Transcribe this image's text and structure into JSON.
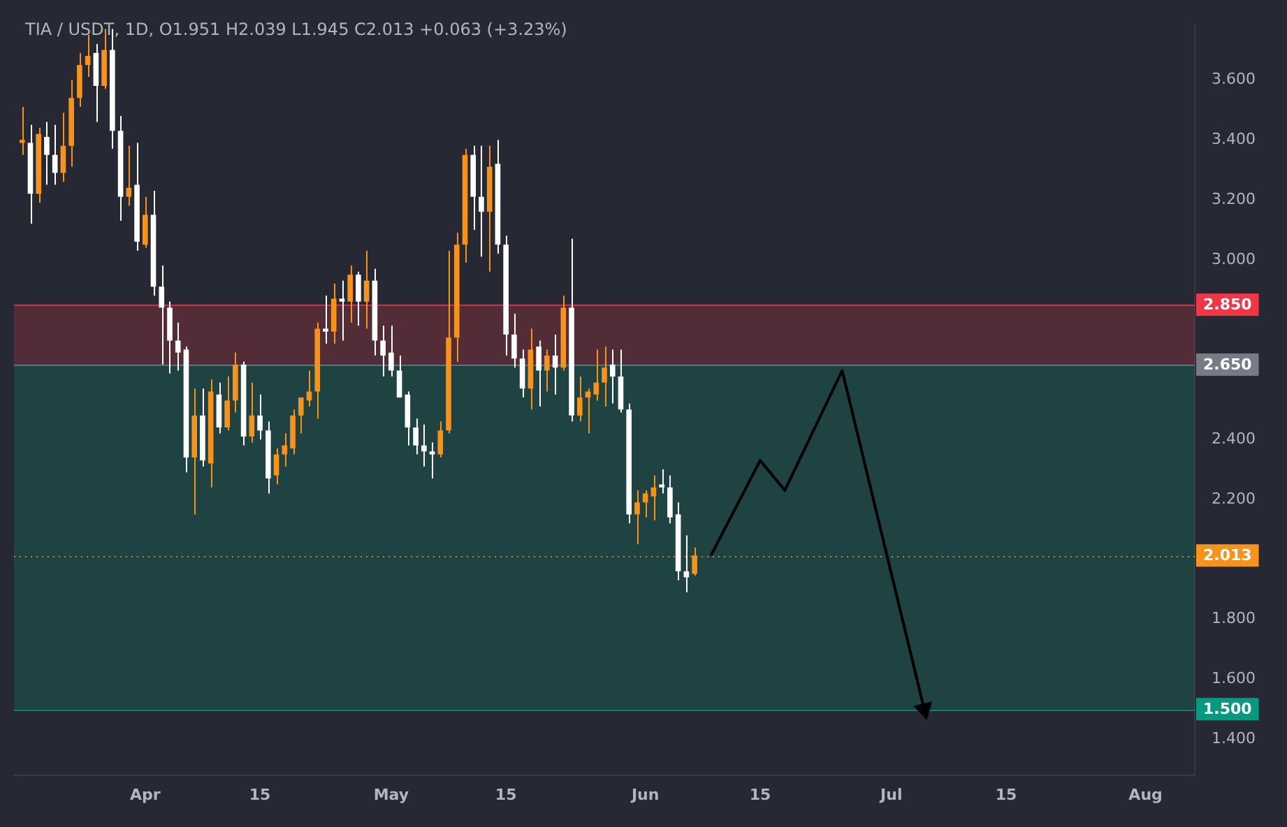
{
  "chart_data": {
    "type": "candlestick",
    "title": "TIA / USDT, 1D, O1.951 H2.039 L1.945 C2.013 +0.063 (+3.23%)",
    "x": [
      "--03-17",
      "--03-18",
      "--03-19",
      "--03-20",
      "--03-21",
      "--03-22",
      "--03-23",
      "--03-24",
      "--03-25",
      "--03-26",
      "--03-27",
      "--03-28",
      "--03-29",
      "--03-30",
      "--03-31",
      "--04-01",
      "--04-02",
      "--04-03",
      "--04-04",
      "--04-05",
      "--04-06",
      "--04-07",
      "--04-08",
      "--04-09",
      "--04-10",
      "--04-11",
      "--04-12",
      "--04-13",
      "--04-14",
      "--04-15",
      "--04-16",
      "--04-17",
      "--04-18",
      "--04-19",
      "--04-20",
      "--04-21",
      "--04-22",
      "--04-23",
      "--04-24",
      "--04-25",
      "--04-26",
      "--04-27",
      "--04-28",
      "--04-29",
      "--04-30",
      "--05-01",
      "--05-02",
      "--05-03",
      "--05-04",
      "--05-05",
      "--05-06",
      "--05-07",
      "--05-08",
      "--05-09",
      "--05-10",
      "--05-11",
      "--05-12",
      "--05-13",
      "--05-14",
      "--05-15",
      "--05-16",
      "--05-17",
      "--05-18",
      "--05-19",
      "--05-20",
      "--05-21",
      "--05-22",
      "--05-23",
      "--05-24",
      "--05-25",
      "--05-26",
      "--05-27",
      "--05-28",
      "--05-29",
      "--05-30",
      "--05-31",
      "--06-01",
      "--06-02",
      "--06-03",
      "--06-04",
      "--06-05",
      "--06-06",
      "--06-07"
    ],
    "ohlc": [
      [
        3.39,
        3.51,
        3.35,
        3.4
      ],
      [
        3.39,
        3.45,
        3.12,
        3.22
      ],
      [
        3.22,
        3.44,
        3.19,
        3.42
      ],
      [
        3.41,
        3.46,
        3.25,
        3.35
      ],
      [
        3.35,
        3.45,
        3.25,
        3.29
      ],
      [
        3.29,
        3.49,
        3.26,
        3.38
      ],
      [
        3.38,
        3.6,
        3.31,
        3.54
      ],
      [
        3.54,
        3.69,
        3.51,
        3.65
      ],
      [
        3.65,
        3.75,
        3.61,
        3.68
      ],
      [
        3.69,
        3.72,
        3.46,
        3.58
      ],
      [
        3.58,
        3.77,
        3.57,
        3.7
      ],
      [
        3.7,
        3.77,
        3.37,
        3.43
      ],
      [
        3.43,
        3.48,
        3.13,
        3.21
      ],
      [
        3.21,
        3.38,
        3.18,
        3.24
      ],
      [
        3.25,
        3.39,
        3.03,
        3.06
      ],
      [
        3.05,
        3.21,
        3.04,
        3.15
      ],
      [
        3.15,
        3.23,
        2.88,
        2.91
      ],
      [
        2.91,
        2.98,
        2.65,
        2.84
      ],
      [
        2.84,
        2.86,
        2.62,
        2.73
      ],
      [
        2.73,
        2.79,
        2.63,
        2.69
      ],
      [
        2.7,
        2.71,
        2.29,
        2.34
      ],
      [
        2.34,
        2.57,
        2.15,
        2.48
      ],
      [
        2.48,
        2.57,
        2.31,
        2.33
      ],
      [
        2.32,
        2.6,
        2.24,
        2.56
      ],
      [
        2.55,
        2.59,
        2.42,
        2.44
      ],
      [
        2.44,
        2.61,
        2.43,
        2.53
      ],
      [
        2.53,
        2.69,
        2.49,
        2.65
      ],
      [
        2.65,
        2.66,
        2.38,
        2.41
      ],
      [
        2.41,
        2.59,
        2.39,
        2.48
      ],
      [
        2.48,
        2.55,
        2.4,
        2.43
      ],
      [
        2.43,
        2.46,
        2.22,
        2.27
      ],
      [
        2.28,
        2.37,
        2.25,
        2.35
      ],
      [
        2.35,
        2.42,
        2.31,
        2.38
      ],
      [
        2.37,
        2.5,
        2.35,
        2.48
      ],
      [
        2.48,
        2.54,
        2.42,
        2.54
      ],
      [
        2.53,
        2.63,
        2.51,
        2.56
      ],
      [
        2.56,
        2.79,
        2.47,
        2.77
      ],
      [
        2.77,
        2.88,
        2.72,
        2.76
      ],
      [
        2.76,
        2.92,
        2.72,
        2.87
      ],
      [
        2.87,
        2.93,
        2.73,
        2.86
      ],
      [
        2.86,
        2.98,
        2.79,
        2.95
      ],
      [
        2.95,
        2.96,
        2.78,
        2.86
      ],
      [
        2.86,
        3.03,
        2.77,
        2.93
      ],
      [
        2.93,
        2.97,
        2.68,
        2.73
      ],
      [
        2.73,
        2.78,
        2.61,
        2.68
      ],
      [
        2.69,
        2.78,
        2.61,
        2.63
      ],
      [
        2.63,
        2.68,
        2.54,
        2.54
      ],
      [
        2.55,
        2.56,
        2.38,
        2.44
      ],
      [
        2.44,
        2.47,
        2.35,
        2.38
      ],
      [
        2.38,
        2.45,
        2.31,
        2.36
      ],
      [
        2.36,
        2.39,
        2.27,
        2.35
      ],
      [
        2.35,
        2.46,
        2.34,
        2.43
      ],
      [
        2.43,
        3.03,
        2.42,
        2.74
      ],
      [
        2.74,
        3.09,
        2.66,
        3.05
      ],
      [
        3.05,
        3.37,
        2.99,
        3.35
      ],
      [
        3.35,
        3.38,
        3.1,
        3.21
      ],
      [
        3.21,
        3.38,
        3.01,
        3.16
      ],
      [
        3.16,
        3.38,
        2.96,
        3.31
      ],
      [
        3.32,
        3.4,
        3.02,
        3.05
      ],
      [
        3.05,
        3.08,
        2.68,
        2.75
      ],
      [
        2.75,
        2.82,
        2.64,
        2.67
      ],
      [
        2.67,
        2.7,
        2.54,
        2.57
      ],
      [
        2.57,
        2.77,
        2.5,
        2.7
      ],
      [
        2.71,
        2.73,
        2.51,
        2.63
      ],
      [
        2.63,
        2.7,
        2.56,
        2.68
      ],
      [
        2.68,
        2.75,
        2.55,
        2.64
      ],
      [
        2.64,
        2.88,
        2.63,
        2.84
      ],
      [
        2.84,
        3.07,
        2.46,
        2.48
      ],
      [
        2.48,
        2.61,
        2.46,
        2.54
      ],
      [
        2.54,
        2.57,
        2.42,
        2.56
      ],
      [
        2.55,
        2.7,
        2.53,
        2.59
      ],
      [
        2.59,
        2.71,
        2.51,
        2.64
      ],
      [
        2.65,
        2.7,
        2.52,
        2.61
      ],
      [
        2.61,
        2.7,
        2.49,
        2.5
      ],
      [
        2.5,
        2.52,
        2.12,
        2.15
      ],
      [
        2.15,
        2.23,
        2.05,
        2.19
      ],
      [
        2.19,
        2.23,
        2.14,
        2.22
      ],
      [
        2.21,
        2.28,
        2.13,
        2.24
      ],
      [
        2.25,
        2.3,
        2.22,
        2.24
      ],
      [
        2.24,
        2.28,
        2.12,
        2.14
      ],
      [
        2.15,
        2.19,
        1.93,
        1.96
      ],
      [
        1.96,
        2.08,
        1.89,
        1.94
      ],
      [
        1.951,
        2.039,
        1.945,
        2.013
      ]
    ],
    "colors": [
      "#f7931a",
      "#ffffff",
      "#f7931a",
      "#ffffff",
      "#ffffff",
      "#f7931a",
      "#f7931a",
      "#f7931a",
      "#f7931a",
      "#ffffff",
      "#f7931a",
      "#ffffff",
      "#ffffff",
      "#f7931a",
      "#ffffff",
      "#f7931a",
      "#ffffff",
      "#ffffff",
      "#ffffff",
      "#ffffff",
      "#ffffff",
      "#f7931a",
      "#ffffff",
      "#f7931a",
      "#ffffff",
      "#f7931a",
      "#f7931a",
      "#ffffff",
      "#f7931a",
      "#ffffff",
      "#ffffff",
      "#f7931a",
      "#f7931a",
      "#f7931a",
      "#f7931a",
      "#f7931a",
      "#f7931a",
      "#ffffff",
      "#f7931a",
      "#ffffff",
      "#f7931a",
      "#ffffff",
      "#f7931a",
      "#ffffff",
      "#ffffff",
      "#ffffff",
      "#ffffff",
      "#ffffff",
      "#ffffff",
      "#ffffff",
      "#ffffff",
      "#f7931a",
      "#f7931a",
      "#f7931a",
      "#f7931a",
      "#ffffff",
      "#ffffff",
      "#f7931a",
      "#ffffff",
      "#ffffff",
      "#ffffff",
      "#ffffff",
      "#f7931a",
      "#ffffff",
      "#f7931a",
      "#ffffff",
      "#f7931a",
      "#ffffff",
      "#f7931a",
      "#f7931a",
      "#f7931a",
      "#f7931a",
      "#ffffff",
      "#ffffff",
      "#ffffff",
      "#f7931a",
      "#f7931a",
      "#f7931a",
      "#ffffff",
      "#ffffff",
      "#ffffff",
      "#ffffff",
      "#f7931a"
    ],
    "series": [
      {
        "type": "line",
        "color": "#000000",
        "x": [
          "--06-09",
          "--06-15",
          "--06-18",
          "--06-25",
          "--07-05"
        ],
        "values": [
          2.013,
          2.33,
          2.23,
          2.63,
          1.5
        ]
      }
    ],
    "xlim": [
      "--03-16",
      "--08-07"
    ],
    "xticks": [
      {
        "value": "--04-01",
        "label": "Apr"
      },
      {
        "value": "--04-15",
        "label": "15"
      },
      {
        "value": "--05-01",
        "label": "May"
      },
      {
        "value": "--05-15",
        "label": "15"
      },
      {
        "value": "--06-01",
        "label": "Jun"
      },
      {
        "value": "--06-15",
        "label": "15"
      },
      {
        "value": "--07-01",
        "label": "Jul"
      },
      {
        "value": "--07-15",
        "label": "15"
      },
      {
        "value": "--08-01",
        "label": "Aug"
      }
    ],
    "ylim": [
      1.28,
      3.78
    ],
    "yticks": [
      {
        "value": 1.4,
        "label": "1.400"
      },
      {
        "value": 1.6,
        "label": "1.600"
      },
      {
        "value": 1.8,
        "label": "1.800"
      },
      {
        "value": 2.2,
        "label": "2.200"
      },
      {
        "value": 2.4,
        "label": "2.400"
      },
      {
        "value": 3.0,
        "label": "3.000"
      },
      {
        "value": 3.2,
        "label": "3.200"
      },
      {
        "value": 3.4,
        "label": "3.400"
      },
      {
        "value": 3.6,
        "label": "3.600"
      }
    ],
    "bands": [
      {
        "axis": "y",
        "from": 2.65,
        "to": 2.85,
        "color": "#f23645"
      },
      {
        "axis": "y",
        "from": 1.5,
        "to": 2.65,
        "color": "#089981"
      }
    ],
    "ref_lines": [
      {
        "axis": "y",
        "value": 2.85,
        "label": "2.850",
        "color": "#f23645"
      },
      {
        "axis": "y",
        "value": 2.65,
        "label": "2.650",
        "color": "#787b86"
      },
      {
        "axis": "y",
        "value": 2.013,
        "label": "2.013",
        "color": "#f7931a",
        "line_style": "dotted"
      },
      {
        "axis": "y",
        "value": 1.5,
        "label": "1.500",
        "color": "#089981"
      }
    ]
  }
}
